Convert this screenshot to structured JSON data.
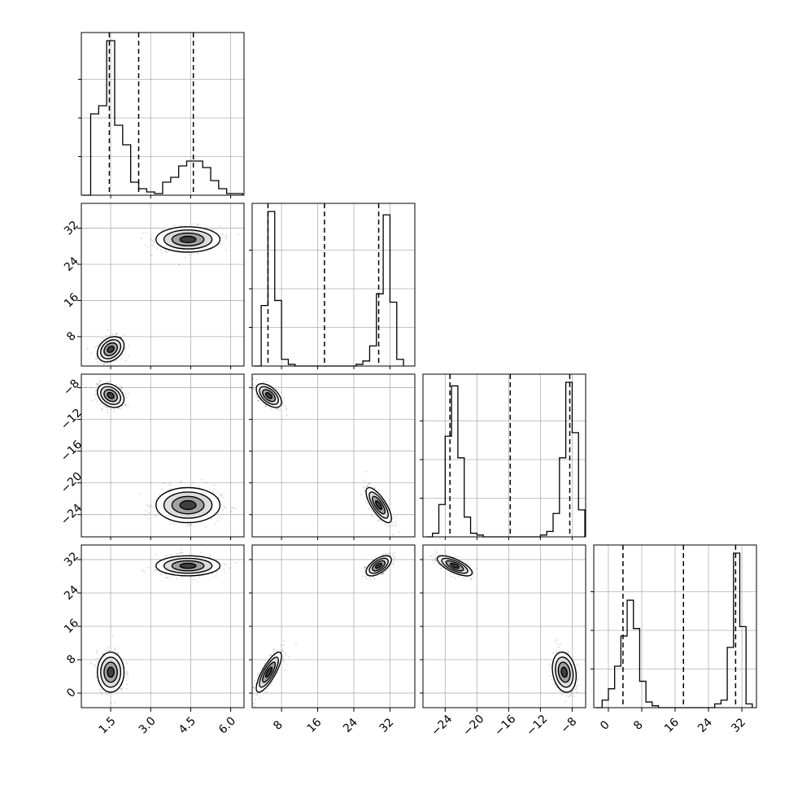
{
  "chart_data": {
    "type": "corner",
    "grid": true,
    "dimensions": [
      {
        "label": "",
        "range": [
          0.4,
          6.5
        ],
        "ticks": [
          1.5,
          3.0,
          4.5,
          6.0
        ],
        "tick_labels": [
          "1.5",
          "3.0",
          "4.5",
          "6.0"
        ],
        "quantiles": [
          1.45,
          2.55,
          4.6
        ]
      },
      {
        "label": "",
        "range": [
          1.5,
          37.5
        ],
        "ticks": [
          8,
          16,
          24,
          32
        ],
        "tick_labels": [
          "8",
          "16",
          "24",
          "32"
        ],
        "quantiles": [
          5.0,
          17.5,
          29.5
        ]
      },
      {
        "label": "",
        "range": [
          -26.8,
          -6.3
        ],
        "ticks": [
          -24,
          -20,
          -16,
          -12,
          -8
        ],
        "tick_labels": [
          "−24",
          "−20",
          "−16",
          "−12",
          "−8"
        ],
        "quantiles": [
          -23.4,
          -15.8,
          -8.3
        ]
      },
      {
        "label": "",
        "range": [
          -3.5,
          35.5
        ],
        "ticks": [
          0,
          8,
          16,
          24,
          32
        ],
        "tick_labels": [
          "0",
          "8",
          "16",
          "24",
          "32"
        ],
        "quantiles": [
          3.5,
          18.0,
          30.5
        ]
      }
    ],
    "clusters": [
      {
        "mean": [
          1.5,
          5.2,
          -9.0,
          5.0
        ],
        "std": [
          0.25,
          1.4,
          0.75,
          2.4
        ],
        "corr": [
          [
            0,
            1,
            0.3
          ],
          [
            0,
            2,
            -0.3
          ],
          [
            0,
            3,
            0.0
          ],
          [
            1,
            2,
            -0.55
          ],
          [
            1,
            3,
            0.8
          ],
          [
            2,
            3,
            -0.2
          ]
        ],
        "weight": 0.5
      },
      {
        "mean": [
          4.4,
          29.5,
          -22.8,
          30.5
        ],
        "std": [
          0.6,
          1.4,
          1.1,
          1.2
        ],
        "corr": [
          [
            0,
            1,
            0.0
          ],
          [
            0,
            2,
            0.0
          ],
          [
            0,
            3,
            0.0
          ],
          [
            1,
            2,
            -0.75
          ],
          [
            1,
            3,
            0.6
          ],
          [
            2,
            3,
            -0.7
          ]
        ],
        "weight": 0.5
      }
    ],
    "histograms": [
      {
        "dim": 0,
        "bins": [
          0.45,
          0.75,
          1.05,
          1.35,
          1.65,
          1.95,
          2.25,
          2.55,
          2.85,
          3.15,
          3.45,
          3.75,
          4.05,
          4.35,
          4.65,
          4.95,
          5.25,
          5.55,
          5.85,
          6.15,
          6.45
        ],
        "counts": [
          0,
          0.5,
          0.55,
          0.95,
          0.43,
          0.31,
          0.08,
          0.04,
          0.02,
          0.01,
          0.08,
          0.11,
          0.18,
          0.21,
          0.21,
          0.17,
          0.09,
          0.04,
          0.01,
          0.01
        ]
      },
      {
        "dim": 1,
        "bins": [
          2,
          3.5,
          5,
          6.5,
          8,
          9.5,
          11,
          12.5,
          14,
          15.5,
          17,
          18.5,
          20,
          21.5,
          23,
          24.5,
          26,
          27.5,
          29,
          30.5,
          32,
          33.5,
          35
        ],
        "counts": [
          0,
          0.36,
          0.92,
          0.39,
          0.04,
          0.01,
          0,
          0,
          0,
          0,
          0,
          0,
          0,
          0,
          0,
          0.01,
          0.03,
          0.12,
          0.43,
          0.9,
          0.38,
          0.04
        ]
      },
      {
        "dim": 2,
        "bins": [
          -26.4,
          -25.6,
          -24.8,
          -24,
          -23.2,
          -22.4,
          -21.6,
          -20.8,
          -20,
          -19.2,
          -18.4,
          -17.6,
          -16.8,
          -16,
          -15.2,
          -14.4,
          -13.6,
          -12.8,
          -12,
          -11.2,
          -10.4,
          -9.6,
          -8.8,
          -8,
          -7.2,
          -6.4
        ],
        "counts": [
          0,
          0.02,
          0.18,
          0.56,
          0.84,
          0.44,
          0.11,
          0.02,
          0.01,
          0,
          0,
          0,
          0,
          0,
          0,
          0,
          0,
          0,
          0.01,
          0.03,
          0.13,
          0.44,
          0.86,
          0.58,
          0.15
        ]
      },
      {
        "dim": 3,
        "bins": [
          -3,
          -1.5,
          0,
          1.5,
          3,
          4.5,
          6,
          7.5,
          9,
          10.5,
          12,
          13.5,
          15,
          16.5,
          18,
          19.5,
          21,
          22.5,
          24,
          25.5,
          27,
          28.5,
          30,
          31.5,
          33,
          34.5
        ],
        "counts": [
          0,
          0.04,
          0.1,
          0.22,
          0.38,
          0.57,
          0.42,
          0.14,
          0.03,
          0.01,
          0,
          0,
          0,
          0,
          0,
          0,
          0,
          0,
          0,
          0.02,
          0.04,
          0.32,
          0.82,
          0.43,
          0.02
        ]
      }
    ]
  }
}
